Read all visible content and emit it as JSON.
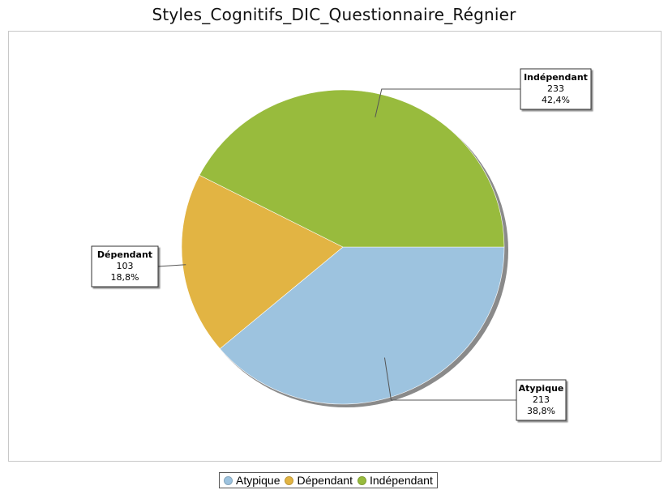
{
  "chart_data": {
    "type": "pie",
    "title": "Styles_Cognitifs_DIC_Questionnaire_Régnier",
    "slices": [
      {
        "label": "Atypique",
        "value": 213,
        "percent": "38,8%",
        "color": "#9dc3df"
      },
      {
        "label": "Dépendant",
        "value": 103,
        "percent": "18,8%",
        "color": "#e2b443"
      },
      {
        "label": "Indépendant",
        "value": 233,
        "percent": "42,4%",
        "color": "#98bb3d"
      }
    ],
    "legend": {
      "placement": "bottom",
      "items": [
        "Atypique",
        "Dépendant",
        "Indépendant"
      ]
    }
  }
}
